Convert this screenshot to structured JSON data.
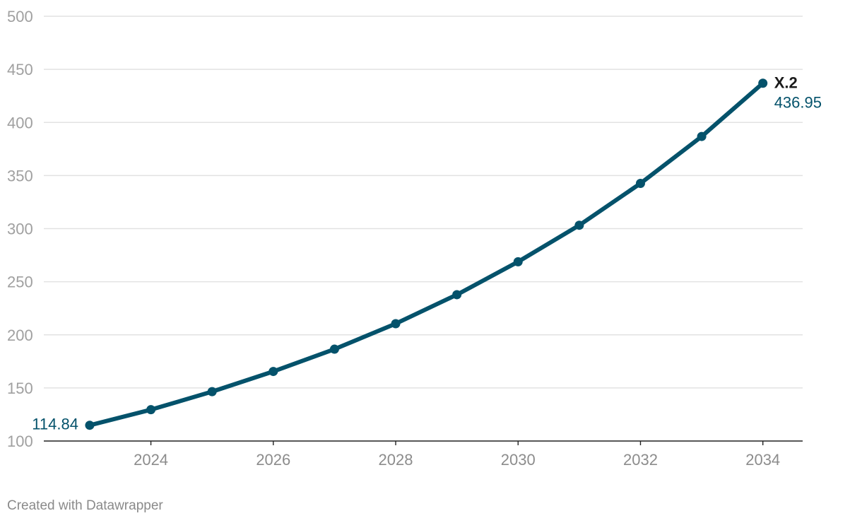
{
  "chart_data": {
    "type": "line",
    "x": [
      2023,
      2024,
      2025,
      2026,
      2027,
      2028,
      2029,
      2030,
      2031,
      2032,
      2033,
      2034
    ],
    "series": [
      {
        "name": "X.2",
        "values": [
          114.84,
          129.5,
          146.5,
          165.5,
          186.5,
          210.5,
          237.8,
          268.8,
          303.2,
          342.6,
          386.8,
          436.95
        ],
        "color": "#04526b"
      }
    ],
    "xlim": [
      2022.25,
      2034.65
    ],
    "ylim": [
      100,
      500
    ],
    "yticks": [
      100,
      150,
      200,
      250,
      300,
      350,
      400,
      450,
      500
    ],
    "xticks": [
      2024,
      2026,
      2028,
      2030,
      2032,
      2034
    ],
    "labels": {
      "start_value": "114.84",
      "end_value": "436.95",
      "end_name": "X.2"
    },
    "grid": true,
    "credit": "Created with Datawrapper"
  }
}
